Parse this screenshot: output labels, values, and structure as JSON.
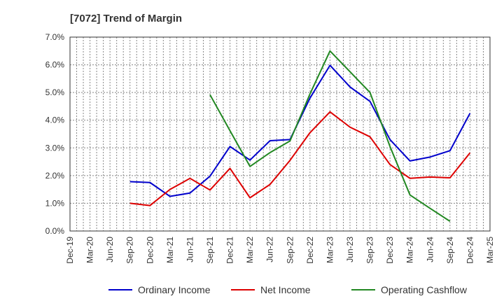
{
  "chart_data": {
    "type": "line",
    "title": "[7072]  Trend of Margin",
    "xlabel": "",
    "ylabel": "",
    "categories": [
      "Dec-19",
      "Mar-20",
      "Jun-20",
      "Sep-20",
      "Dec-20",
      "Mar-21",
      "Jun-21",
      "Sep-21",
      "Dec-21",
      "Mar-22",
      "Jun-22",
      "Sep-22",
      "Dec-22",
      "Mar-23",
      "Jun-23",
      "Sep-23",
      "Dec-23",
      "Mar-24",
      "Jun-24",
      "Sep-24",
      "Dec-24",
      "Mar-25"
    ],
    "y_ticks": [
      "0.0%",
      "1.0%",
      "2.0%",
      "3.0%",
      "4.0%",
      "5.0%",
      "6.0%",
      "7.0%"
    ],
    "ylim": [
      0,
      7
    ],
    "grid": true,
    "legend_position": "bottom",
    "series": [
      {
        "name": "Ordinary Income",
        "color": "#0000cc",
        "values": [
          null,
          null,
          null,
          1.78,
          1.75,
          1.25,
          1.37,
          1.98,
          3.05,
          2.56,
          3.26,
          3.3,
          4.8,
          5.98,
          5.2,
          4.68,
          3.3,
          2.53,
          2.67,
          2.9,
          4.25,
          null
        ]
      },
      {
        "name": "Net Income",
        "color": "#dd0000",
        "values": [
          null,
          null,
          null,
          1.0,
          0.92,
          1.5,
          1.9,
          1.48,
          2.26,
          1.2,
          1.68,
          2.55,
          3.55,
          4.3,
          3.75,
          3.4,
          2.4,
          1.9,
          1.95,
          1.92,
          2.82,
          null
        ]
      },
      {
        "name": "Operating Cashflow",
        "color": "#228822",
        "values": [
          null,
          null,
          null,
          null,
          null,
          null,
          null,
          4.92,
          3.62,
          2.33,
          2.83,
          3.25,
          4.95,
          6.5,
          5.75,
          5.0,
          3.05,
          1.3,
          0.82,
          0.35,
          null,
          null
        ]
      }
    ]
  }
}
